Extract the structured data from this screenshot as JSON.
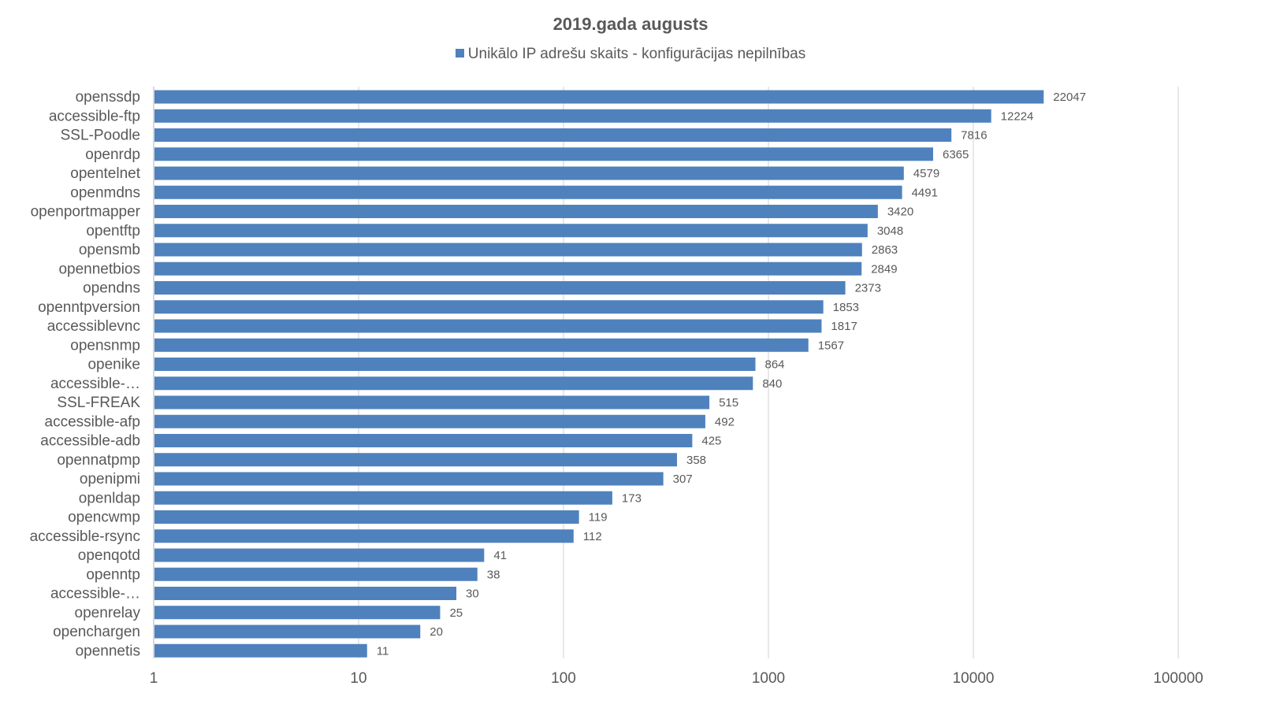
{
  "chart_data": {
    "type": "bar",
    "orientation": "horizontal",
    "title": "2019.gada augusts",
    "x_scale": "log",
    "xlim": [
      1,
      100000
    ],
    "grid": true,
    "legend_position": "top",
    "bar_color": "#4f81bd",
    "x_ticks": [
      "1",
      "10",
      "100",
      "1000",
      "10000",
      "100000"
    ],
    "categories": [
      "openssdp",
      "accessible-ftp",
      "SSL-Poodle",
      "openrdp",
      "opentelnet",
      "openmdns",
      "openportmapper",
      "opentftp",
      "opensmb",
      "opennetbios",
      "opendns",
      "openntpversion",
      "accessiblevnc",
      "opensnmp",
      "openike",
      "accessible-…",
      "SSL-FREAK",
      "accessible-afp",
      "accessible-adb",
      "opennatpmp",
      "openipmi",
      "openldap",
      "opencwmp",
      "accessible-rsync",
      "openqotd",
      "openntp",
      "accessible-…",
      "openrelay",
      "openchargen",
      "opennetis"
    ],
    "series": [
      {
        "name": "Unikālo IP adrešu skaits  -  konfigurācijas nepilnības",
        "values": [
          22047,
          12224,
          7816,
          6365,
          4579,
          4491,
          3420,
          3048,
          2863,
          2849,
          2373,
          1853,
          1817,
          1567,
          864,
          840,
          515,
          492,
          425,
          358,
          307,
          173,
          119,
          112,
          41,
          38,
          30,
          25,
          20,
          11
        ]
      }
    ]
  }
}
